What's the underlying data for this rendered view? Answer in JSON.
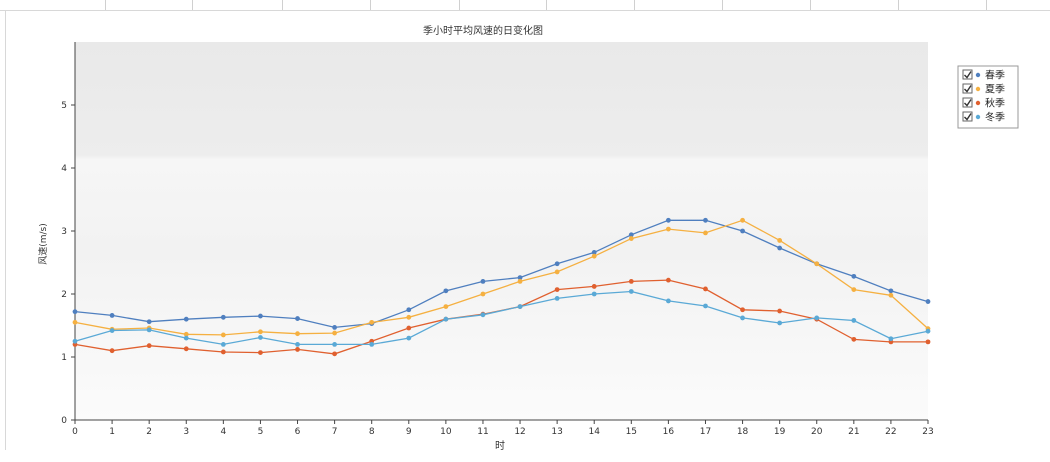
{
  "chart_data": {
    "type": "line",
    "title": "季小时平均风速的日变化图",
    "xlabel": "时",
    "ylabel": "风速(m/s)",
    "x": [
      0,
      1,
      2,
      3,
      4,
      5,
      6,
      7,
      8,
      9,
      10,
      11,
      12,
      13,
      14,
      15,
      16,
      17,
      18,
      19,
      20,
      21,
      22,
      23
    ],
    "xticks": [
      "0",
      "1",
      "2",
      "3",
      "4",
      "5",
      "6",
      "7",
      "8",
      "9",
      "10",
      "11",
      "12",
      "13",
      "14",
      "15",
      "16",
      "17",
      "18",
      "19",
      "20",
      "21",
      "22",
      "23"
    ],
    "xlim": [
      0,
      23
    ],
    "ylim": [
      0,
      6
    ],
    "yticks": [
      "0",
      "1",
      "2",
      "3",
      "4",
      "5"
    ],
    "grid": false,
    "legend_position": "top-right",
    "series": [
      {
        "name": "春季",
        "color": "#4f7fbf",
        "values": [
          1.72,
          1.66,
          1.56,
          1.6,
          1.63,
          1.65,
          1.61,
          1.47,
          1.53,
          1.75,
          2.05,
          2.2,
          2.26,
          2.48,
          2.66,
          2.94,
          3.17,
          3.17,
          3.0,
          2.73,
          2.48,
          2.28,
          2.05,
          1.88
        ]
      },
      {
        "name": "夏季",
        "color": "#f5b041",
        "values": [
          1.55,
          1.44,
          1.46,
          1.36,
          1.35,
          1.4,
          1.37,
          1.38,
          1.55,
          1.63,
          1.8,
          2.0,
          2.2,
          2.35,
          2.6,
          2.88,
          3.03,
          2.97,
          3.17,
          2.85,
          2.48,
          2.07,
          1.98,
          1.45
        ]
      },
      {
        "name": "秋季",
        "color": "#e0602f",
        "values": [
          1.2,
          1.1,
          1.18,
          1.13,
          1.08,
          1.07,
          1.12,
          1.05,
          1.25,
          1.46,
          1.6,
          1.68,
          1.8,
          2.07,
          2.12,
          2.2,
          2.22,
          2.08,
          1.75,
          1.73,
          1.6,
          1.28,
          1.24,
          1.24
        ]
      },
      {
        "name": "冬季",
        "color": "#5aa9d6",
        "values": [
          1.25,
          1.42,
          1.43,
          1.3,
          1.2,
          1.31,
          1.2,
          1.2,
          1.2,
          1.3,
          1.6,
          1.67,
          1.8,
          1.93,
          2.0,
          2.04,
          1.89,
          1.81,
          1.62,
          1.54,
          1.62,
          1.58,
          1.29,
          1.41
        ]
      }
    ]
  }
}
